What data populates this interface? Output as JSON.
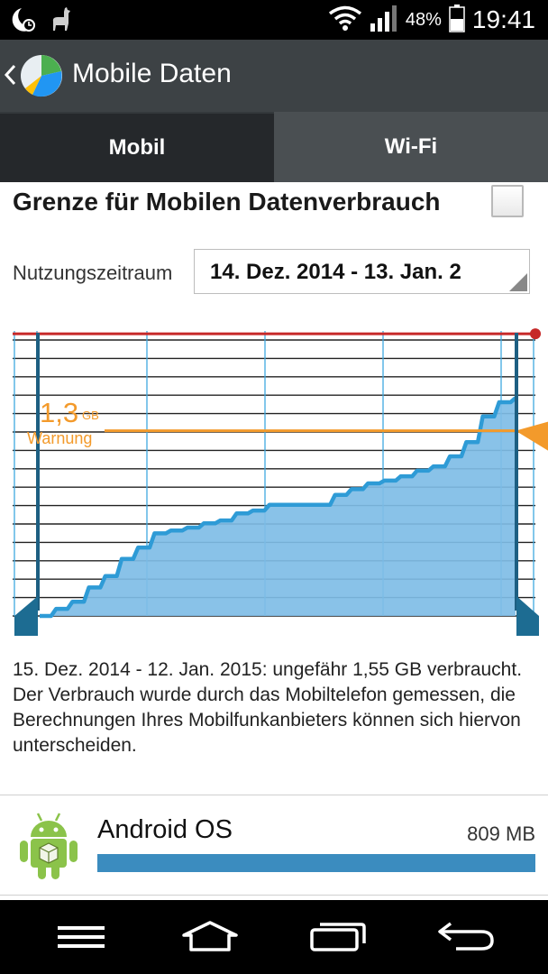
{
  "status_bar": {
    "battery_percent": "48%",
    "time": "19:41",
    "icons": [
      "moon-clock-icon",
      "llama-icon",
      "wifi-icon",
      "signal-icon",
      "battery-icon"
    ]
  },
  "action_bar": {
    "title": "Mobile Daten",
    "icon": "data-usage-pie-icon"
  },
  "tabs": [
    {
      "label": "Mobil",
      "active": true
    },
    {
      "label": "Wi-Fi",
      "active": false
    }
  ],
  "limit": {
    "label": "Grenze für Mobilen Datenverbrauch",
    "checked": false
  },
  "period": {
    "label": "Nutzungszeitraum",
    "value": "14. Dez. 2014 - 13. Jan. 2"
  },
  "chart_data": {
    "type": "area",
    "x": [
      0,
      1,
      2,
      3,
      4,
      5,
      6,
      7,
      8,
      9,
      10,
      11,
      12,
      13,
      14,
      15,
      16,
      17,
      18,
      19,
      20,
      21,
      22,
      23,
      24,
      25,
      26,
      27,
      28,
      29
    ],
    "values": [
      0.0,
      0.05,
      0.1,
      0.2,
      0.28,
      0.4,
      0.48,
      0.58,
      0.6,
      0.62,
      0.65,
      0.67,
      0.72,
      0.74,
      0.78,
      0.78,
      0.78,
      0.78,
      0.85,
      0.89,
      0.93,
      0.95,
      0.98,
      1.02,
      1.05,
      1.12,
      1.22,
      1.4,
      1.5,
      1.53
    ],
    "warning": {
      "value": "1,3",
      "unit": "GB",
      "label": "Warnung",
      "gb": 1.3
    },
    "limit_gb": 1.98,
    "ylim": [
      0,
      2.0
    ],
    "colors": {
      "fill": "#7fbde6",
      "line": "#2e9bd6",
      "warning": "#f39a2b",
      "limit": "#c62828"
    }
  },
  "summary": "15. Dez. 2014 - 12. Jan. 2015: ungefähr 1,55 GB verbraucht. Der Verbrauch wurde durch das Mobiltelefon gemessen, die Berechnungen Ihres Mobilfunkanbieters können sich hiervon unterscheiden.",
  "apps": [
    {
      "name": "Android OS",
      "size": "809 MB",
      "icon": "android-icon",
      "fraction": 1.0
    }
  ],
  "nav_bar": [
    "menu-icon",
    "home-icon",
    "recent-apps-icon",
    "back-icon"
  ]
}
